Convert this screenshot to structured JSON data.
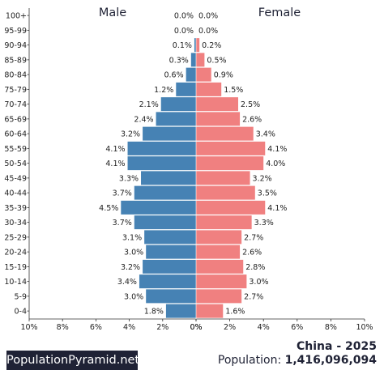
{
  "chart_data": {
    "type": "bar",
    "orientation": "horizontal-pyramid",
    "male_label": "Male",
    "female_label": "Female",
    "categories": [
      "100+",
      "95-99",
      "90-94",
      "85-89",
      "80-84",
      "75-79",
      "70-74",
      "65-69",
      "60-64",
      "55-59",
      "50-54",
      "45-49",
      "40-44",
      "35-39",
      "30-34",
      "25-29",
      "20-24",
      "15-19",
      "10-14",
      "5-9",
      "0-4"
    ],
    "series": [
      {
        "name": "Male",
        "values": [
          0.0,
          0.0,
          0.1,
          0.3,
          0.6,
          1.2,
          2.1,
          2.4,
          3.2,
          4.1,
          4.1,
          3.3,
          3.7,
          4.5,
          3.7,
          3.1,
          3.0,
          3.2,
          3.4,
          3.0,
          1.8
        ],
        "color": "#4682b4"
      },
      {
        "name": "Female",
        "values": [
          0.0,
          0.0,
          0.2,
          0.5,
          0.9,
          1.5,
          2.5,
          2.6,
          3.4,
          4.1,
          4.0,
          3.2,
          3.5,
          4.1,
          3.3,
          2.7,
          2.6,
          2.8,
          3.0,
          2.7,
          1.6
        ],
        "color": "#f08080"
      }
    ],
    "value_format": "{v}%",
    "xlim": [
      0,
      10
    ],
    "x_ticks_left": [
      "10%",
      "8%",
      "6%",
      "4%",
      "2%",
      "0%"
    ],
    "x_ticks_right": [
      "0%",
      "2%",
      "4%",
      "6%",
      "8%",
      "10%"
    ],
    "grid": false
  },
  "footer": {
    "brand": "PopulationPyramid.net",
    "country": "China - 2025",
    "population_label": "Population: ",
    "population_value": "1,416,096,094"
  }
}
